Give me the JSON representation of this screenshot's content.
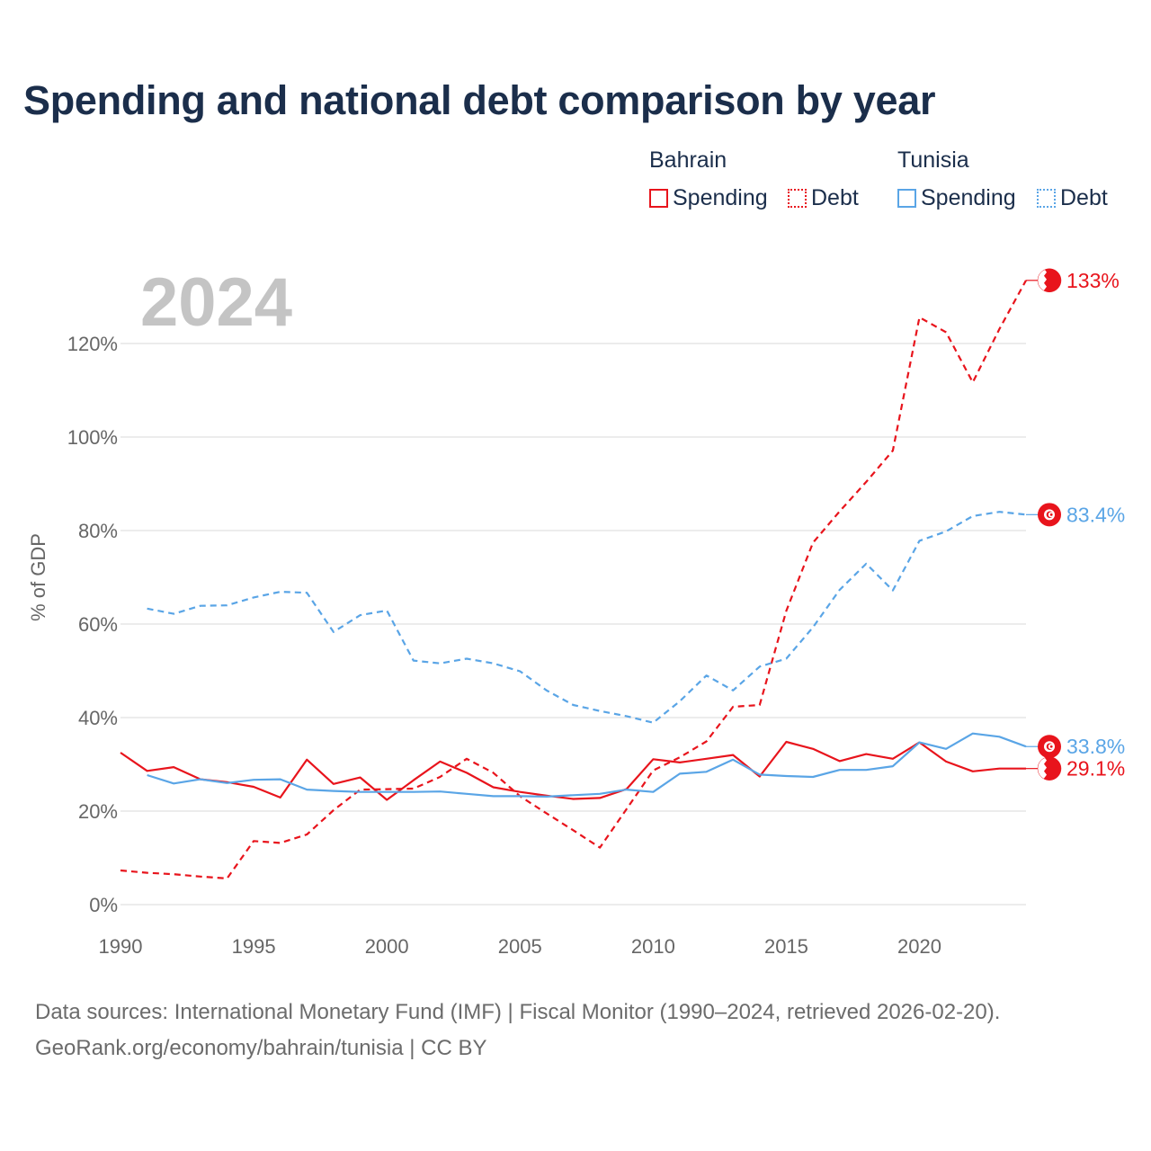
{
  "title": "Spending and national debt comparison by year",
  "legend": {
    "groups": [
      {
        "country": "Bahrain",
        "color": "#e8141c",
        "items": [
          "Spending",
          "Debt"
        ]
      },
      {
        "country": "Tunisia",
        "color": "#5aa5e6",
        "items": [
          "Spending",
          "Debt"
        ]
      }
    ]
  },
  "year_label": "2024",
  "source": {
    "line1": "Data sources: International Monetary Fund (IMF) | Fiscal Monitor (1990–2024, retrieved 2026-02-20).",
    "line2": "GeoRank.org/economy/bahrain/tunisia | CC BY"
  },
  "chart_data": {
    "type": "line",
    "title": "Spending and national debt comparison by year",
    "xlabel": "",
    "ylabel": "% of GDP",
    "xlim": [
      1990,
      2024
    ],
    "ylim": [
      0,
      140
    ],
    "x_ticks": [
      1990,
      1995,
      2000,
      2005,
      2010,
      2015,
      2020
    ],
    "y_ticks": [
      0,
      20,
      40,
      60,
      80,
      100,
      120
    ],
    "y_tick_labels": [
      "0%",
      "20%",
      "40%",
      "60%",
      "80%",
      "100%",
      "120%"
    ],
    "grid": true,
    "series": [
      {
        "name": "Bahrain Spending",
        "country": "Bahrain",
        "metric": "Spending",
        "style": "solid",
        "color": "#e8141c",
        "end_label": "29.1%",
        "points": [
          [
            1990,
            32.5
          ],
          [
            1991,
            28.6
          ],
          [
            1992,
            29.4
          ],
          [
            1993,
            26.8
          ],
          [
            1994,
            26.2
          ],
          [
            1995,
            25.2
          ],
          [
            1996,
            22.9
          ],
          [
            1997,
            31.0
          ],
          [
            1998,
            25.8
          ],
          [
            1999,
            27.2
          ],
          [
            2000,
            22.4
          ],
          [
            2001,
            26.6
          ],
          [
            2002,
            30.6
          ],
          [
            2003,
            28.2
          ],
          [
            2004,
            25.1
          ],
          [
            2005,
            24.1
          ],
          [
            2006,
            23.3
          ],
          [
            2007,
            22.6
          ],
          [
            2008,
            22.8
          ],
          [
            2009,
            24.7
          ],
          [
            2010,
            31.1
          ],
          [
            2011,
            30.4
          ],
          [
            2012,
            31.2
          ],
          [
            2013,
            32.0
          ],
          [
            2014,
            27.4
          ],
          [
            2015,
            34.8
          ],
          [
            2016,
            33.3
          ],
          [
            2017,
            30.7
          ],
          [
            2018,
            32.2
          ],
          [
            2019,
            31.2
          ],
          [
            2020,
            34.7
          ],
          [
            2021,
            30.6
          ],
          [
            2022,
            28.5
          ],
          [
            2023,
            29.1
          ],
          [
            2024,
            29.1
          ]
        ]
      },
      {
        "name": "Bahrain Debt",
        "country": "Bahrain",
        "metric": "Debt",
        "style": "dashed",
        "color": "#e8141c",
        "end_label": "133%",
        "points": [
          [
            1990,
            7.3
          ],
          [
            1991,
            6.8
          ],
          [
            1992,
            6.5
          ],
          [
            1993,
            6.0
          ],
          [
            1994,
            5.6
          ],
          [
            1995,
            13.6
          ],
          [
            1996,
            13.2
          ],
          [
            1997,
            15.0
          ],
          [
            1998,
            20.2
          ],
          [
            1999,
            24.6
          ],
          [
            2000,
            24.7
          ],
          [
            2001,
            24.8
          ],
          [
            2002,
            27.3
          ],
          [
            2003,
            31.2
          ],
          [
            2004,
            28.2
          ],
          [
            2005,
            23.2
          ],
          [
            2006,
            19.5
          ],
          [
            2007,
            15.9
          ],
          [
            2008,
            12.2
          ],
          [
            2009,
            20.4
          ],
          [
            2010,
            28.7
          ],
          [
            2011,
            31.5
          ],
          [
            2012,
            34.9
          ],
          [
            2013,
            42.3
          ],
          [
            2014,
            42.7
          ],
          [
            2015,
            62.8
          ],
          [
            2016,
            77.4
          ],
          [
            2017,
            84.1
          ],
          [
            2018,
            90.4
          ],
          [
            2019,
            97.1
          ],
          [
            2020,
            125.6
          ],
          [
            2021,
            122.4
          ],
          [
            2022,
            111.7
          ],
          [
            2023,
            123.1
          ],
          [
            2024,
            133.5
          ]
        ]
      },
      {
        "name": "Tunisia Spending",
        "country": "Tunisia",
        "metric": "Spending",
        "style": "solid",
        "color": "#5aa5e6",
        "end_label": "33.8%",
        "points": [
          [
            1991,
            27.7
          ],
          [
            1992,
            25.9
          ],
          [
            1993,
            26.8
          ],
          [
            1994,
            26.0
          ],
          [
            1995,
            26.7
          ],
          [
            1996,
            26.8
          ],
          [
            1997,
            24.6
          ],
          [
            1998,
            24.3
          ],
          [
            1999,
            24.1
          ],
          [
            2000,
            24.1
          ],
          [
            2001,
            24.1
          ],
          [
            2002,
            24.2
          ],
          [
            2003,
            23.7
          ],
          [
            2004,
            23.2
          ],
          [
            2005,
            23.2
          ],
          [
            2006,
            23.1
          ],
          [
            2007,
            23.4
          ],
          [
            2008,
            23.7
          ],
          [
            2009,
            24.6
          ],
          [
            2010,
            24.1
          ],
          [
            2011,
            28.0
          ],
          [
            2012,
            28.4
          ],
          [
            2013,
            31.0
          ],
          [
            2014,
            27.8
          ],
          [
            2015,
            27.5
          ],
          [
            2016,
            27.3
          ],
          [
            2017,
            28.8
          ],
          [
            2018,
            28.8
          ],
          [
            2019,
            29.6
          ],
          [
            2020,
            34.7
          ],
          [
            2021,
            33.3
          ],
          [
            2022,
            36.6
          ],
          [
            2023,
            35.9
          ],
          [
            2024,
            33.8
          ]
        ]
      },
      {
        "name": "Tunisia Debt",
        "country": "Tunisia",
        "metric": "Debt",
        "style": "dashed",
        "color": "#5aa5e6",
        "end_label": "83.4%",
        "points": [
          [
            1991,
            63.3
          ],
          [
            1992,
            62.2
          ],
          [
            1993,
            63.9
          ],
          [
            1994,
            64.0
          ],
          [
            1995,
            65.7
          ],
          [
            1996,
            66.9
          ],
          [
            1997,
            66.7
          ],
          [
            1998,
            58.3
          ],
          [
            1999,
            61.9
          ],
          [
            2000,
            62.9
          ],
          [
            2001,
            52.2
          ],
          [
            2002,
            51.6
          ],
          [
            2003,
            52.6
          ],
          [
            2004,
            51.6
          ],
          [
            2005,
            49.9
          ],
          [
            2006,
            45.8
          ],
          [
            2007,
            42.7
          ],
          [
            2008,
            41.4
          ],
          [
            2009,
            40.3
          ],
          [
            2010,
            38.9
          ],
          [
            2011,
            43.5
          ],
          [
            2012,
            49.0
          ],
          [
            2013,
            45.8
          ],
          [
            2014,
            50.9
          ],
          [
            2015,
            52.6
          ],
          [
            2016,
            59.3
          ],
          [
            2017,
            67.3
          ],
          [
            2018,
            72.9
          ],
          [
            2019,
            67.2
          ],
          [
            2020,
            77.8
          ],
          [
            2021,
            79.8
          ],
          [
            2022,
            83.1
          ],
          [
            2023,
            84.0
          ],
          [
            2024,
            83.4
          ]
        ]
      }
    ]
  }
}
